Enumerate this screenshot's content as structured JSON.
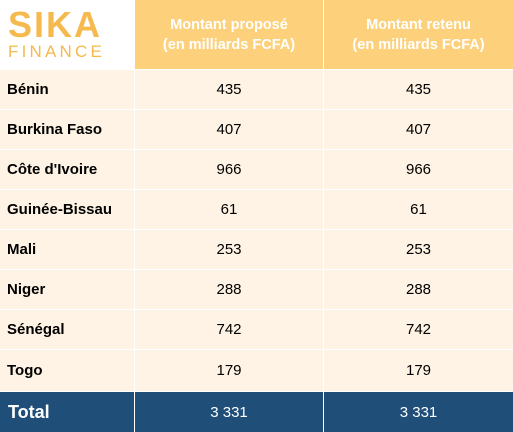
{
  "logo": {
    "top": "SIKA",
    "bottom": "FINANCE"
  },
  "header": {
    "col2_line1": "Montant proposé",
    "col2_line2": "(en milliards FCFA)",
    "col3_line1": "Montant retenu",
    "col3_line2": "(en milliards FCFA)"
  },
  "rows": [
    {
      "country": "Bénin",
      "proposed": "435",
      "retained": "435"
    },
    {
      "country": "Burkina Faso",
      "proposed": "407",
      "retained": "407"
    },
    {
      "country": "Côte d'Ivoire",
      "proposed": "966",
      "retained": "966"
    },
    {
      "country": "Guinée-Bissau",
      "proposed": "61",
      "retained": "61"
    },
    {
      "country": "Mali",
      "proposed": "253",
      "retained": "253"
    },
    {
      "country": "Niger",
      "proposed": "288",
      "retained": "288"
    },
    {
      "country": "Sénégal",
      "proposed": "742",
      "retained": "742"
    },
    {
      "country": "Togo",
      "proposed": "179",
      "retained": "179"
    }
  ],
  "total": {
    "label": "Total",
    "proposed": "3 331",
    "retained": "3 331"
  },
  "colors": {
    "header_bg": "#fdd17b",
    "row_bg": "#fef3e4",
    "total_bg": "#1f4e79",
    "logo": "#f6b94d"
  }
}
